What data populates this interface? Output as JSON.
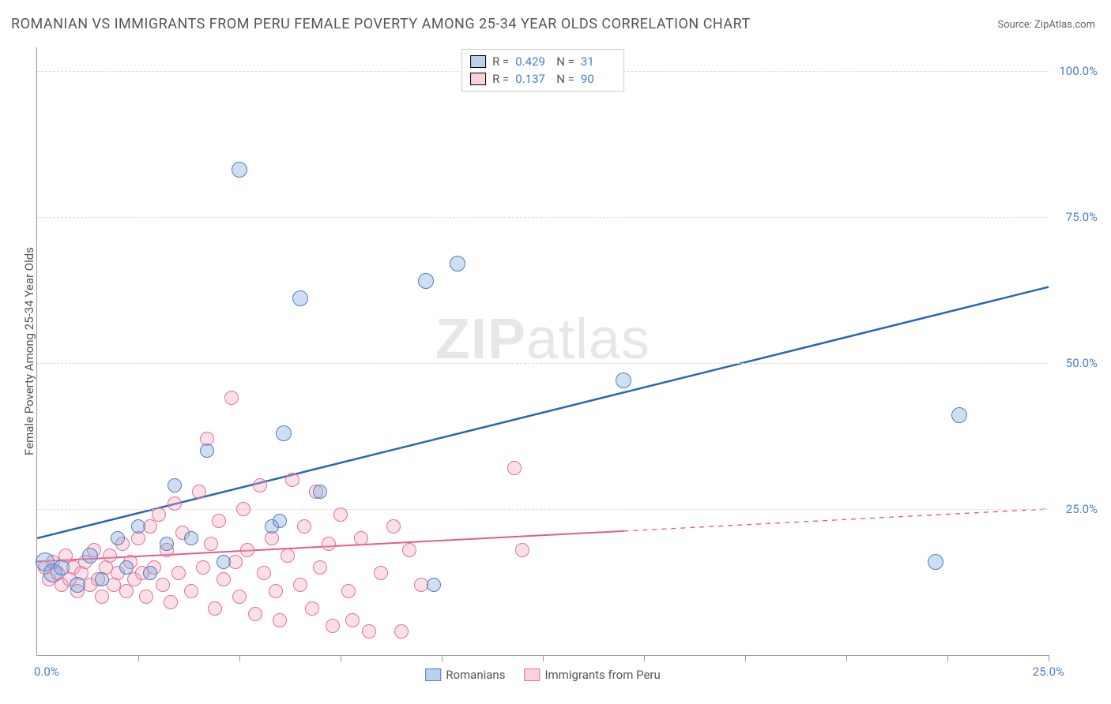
{
  "title": "ROMANIAN VS IMMIGRANTS FROM PERU FEMALE POVERTY AMONG 25-34 YEAR OLDS CORRELATION CHART",
  "source": "Source: ZipAtlas.com",
  "yaxis_label": "Female Poverty Among 25-34 Year Olds",
  "watermark_bold": "ZIP",
  "watermark_light": "atlas",
  "chart": {
    "type": "scatter",
    "xlim": [
      0,
      25
    ],
    "ylim": [
      0,
      104
    ],
    "y_gridlines": [
      25,
      50,
      75,
      100
    ],
    "y_tick_labels": [
      "25.0%",
      "50.0%",
      "75.0%",
      "100.0%"
    ],
    "x_ticks": [
      2.5,
      5,
      7.5,
      10,
      12.5,
      15,
      17.5,
      20,
      22.5,
      25
    ],
    "x_origin_label": "0.0%",
    "x_end_label": "25.0%",
    "background_color": "#ffffff",
    "grid_color": "#dddddd",
    "axis_color": "#999999",
    "label_color": "#555555",
    "tick_color": "#4a7ec9",
    "series": {
      "romanians": {
        "label": "Romanians",
        "R": "0.429",
        "N": "31",
        "color_fill": "rgba(118,164,219,0.35)",
        "color_stroke": "#4a7ec9",
        "marker_radius": 9,
        "trend": {
          "x1": 0,
          "y1": 20,
          "x2": 25,
          "y2": 63,
          "color": "#2b65b6",
          "width": 2.5,
          "solid_until_x": 25
        },
        "points": [
          {
            "x": 0.2,
            "y": 16,
            "r": 12
          },
          {
            "x": 0.4,
            "y": 14,
            "r": 12
          },
          {
            "x": 0.6,
            "y": 15,
            "r": 10
          },
          {
            "x": 1.0,
            "y": 12,
            "r": 10
          },
          {
            "x": 1.3,
            "y": 17,
            "r": 10
          },
          {
            "x": 1.6,
            "y": 13,
            "r": 9
          },
          {
            "x": 2.0,
            "y": 20,
            "r": 9
          },
          {
            "x": 2.2,
            "y": 15,
            "r": 9
          },
          {
            "x": 2.5,
            "y": 22,
            "r": 9
          },
          {
            "x": 2.8,
            "y": 14,
            "r": 9
          },
          {
            "x": 3.2,
            "y": 19,
            "r": 9
          },
          {
            "x": 3.4,
            "y": 29,
            "r": 9
          },
          {
            "x": 3.8,
            "y": 20,
            "r": 9
          },
          {
            "x": 4.2,
            "y": 35,
            "r": 9
          },
          {
            "x": 4.6,
            "y": 16,
            "r": 9
          },
          {
            "x": 5.0,
            "y": 83,
            "r": 10
          },
          {
            "x": 5.8,
            "y": 22,
            "r": 9
          },
          {
            "x": 6.0,
            "y": 23,
            "r": 9
          },
          {
            "x": 6.1,
            "y": 38,
            "r": 10
          },
          {
            "x": 6.5,
            "y": 61,
            "r": 10
          },
          {
            "x": 7.0,
            "y": 28,
            "r": 9
          },
          {
            "x": 9.6,
            "y": 64,
            "r": 10
          },
          {
            "x": 9.8,
            "y": 12,
            "r": 9
          },
          {
            "x": 10.4,
            "y": 67,
            "r": 10
          },
          {
            "x": 14.5,
            "y": 47,
            "r": 10
          },
          {
            "x": 22.2,
            "y": 16,
            "r": 10
          },
          {
            "x": 22.8,
            "y": 41,
            "r": 10
          }
        ]
      },
      "immigrants_peru": {
        "label": "Immigrants from Peru",
        "R": "0.137",
        "N": "90",
        "color_fill": "rgba(244,166,188,0.35)",
        "color_stroke": "#e86f93",
        "marker_radius": 9,
        "trend": {
          "x1": 0,
          "y1": 16,
          "x2": 25,
          "y2": 25,
          "color": "#e75b86",
          "width": 2,
          "solid_until_x": 14.5
        },
        "points": [
          {
            "x": 0.2,
            "y": 15
          },
          {
            "x": 0.3,
            "y": 13
          },
          {
            "x": 0.4,
            "y": 16
          },
          {
            "x": 0.5,
            "y": 14
          },
          {
            "x": 0.6,
            "y": 12
          },
          {
            "x": 0.7,
            "y": 17
          },
          {
            "x": 0.8,
            "y": 13
          },
          {
            "x": 0.9,
            "y": 15
          },
          {
            "x": 1.0,
            "y": 11
          },
          {
            "x": 1.1,
            "y": 14
          },
          {
            "x": 1.2,
            "y": 16
          },
          {
            "x": 1.3,
            "y": 12
          },
          {
            "x": 1.4,
            "y": 18
          },
          {
            "x": 1.5,
            "y": 13
          },
          {
            "x": 1.6,
            "y": 10
          },
          {
            "x": 1.7,
            "y": 15
          },
          {
            "x": 1.8,
            "y": 17
          },
          {
            "x": 1.9,
            "y": 12
          },
          {
            "x": 2.0,
            "y": 14
          },
          {
            "x": 2.1,
            "y": 19
          },
          {
            "x": 2.2,
            "y": 11
          },
          {
            "x": 2.3,
            "y": 16
          },
          {
            "x": 2.4,
            "y": 13
          },
          {
            "x": 2.5,
            "y": 20
          },
          {
            "x": 2.6,
            "y": 14
          },
          {
            "x": 2.7,
            "y": 10
          },
          {
            "x": 2.8,
            "y": 22
          },
          {
            "x": 2.9,
            "y": 15
          },
          {
            "x": 3.0,
            "y": 24
          },
          {
            "x": 3.1,
            "y": 12
          },
          {
            "x": 3.2,
            "y": 18
          },
          {
            "x": 3.3,
            "y": 9
          },
          {
            "x": 3.4,
            "y": 26
          },
          {
            "x": 3.5,
            "y": 14
          },
          {
            "x": 3.6,
            "y": 21
          },
          {
            "x": 3.8,
            "y": 11
          },
          {
            "x": 4.0,
            "y": 28
          },
          {
            "x": 4.1,
            "y": 15
          },
          {
            "x": 4.2,
            "y": 37
          },
          {
            "x": 4.3,
            "y": 19
          },
          {
            "x": 4.4,
            "y": 8
          },
          {
            "x": 4.5,
            "y": 23
          },
          {
            "x": 4.6,
            "y": 13
          },
          {
            "x": 4.8,
            "y": 44
          },
          {
            "x": 4.9,
            "y": 16
          },
          {
            "x": 5.0,
            "y": 10
          },
          {
            "x": 5.1,
            "y": 25
          },
          {
            "x": 5.2,
            "y": 18
          },
          {
            "x": 5.4,
            "y": 7
          },
          {
            "x": 5.5,
            "y": 29
          },
          {
            "x": 5.6,
            "y": 14
          },
          {
            "x": 5.8,
            "y": 20
          },
          {
            "x": 5.9,
            "y": 11
          },
          {
            "x": 6.0,
            "y": 6
          },
          {
            "x": 6.2,
            "y": 17
          },
          {
            "x": 6.3,
            "y": 30
          },
          {
            "x": 6.5,
            "y": 12
          },
          {
            "x": 6.6,
            "y": 22
          },
          {
            "x": 6.8,
            "y": 8
          },
          {
            "x": 6.9,
            "y": 28
          },
          {
            "x": 7.0,
            "y": 15
          },
          {
            "x": 7.2,
            "y": 19
          },
          {
            "x": 7.3,
            "y": 5
          },
          {
            "x": 7.5,
            "y": 24
          },
          {
            "x": 7.7,
            "y": 11
          },
          {
            "x": 7.8,
            "y": 6
          },
          {
            "x": 8.0,
            "y": 20
          },
          {
            "x": 8.2,
            "y": 4
          },
          {
            "x": 8.5,
            "y": 14
          },
          {
            "x": 8.8,
            "y": 22
          },
          {
            "x": 9.0,
            "y": 4
          },
          {
            "x": 9.2,
            "y": 18
          },
          {
            "x": 9.5,
            "y": 12
          },
          {
            "x": 11.8,
            "y": 32
          },
          {
            "x": 12.0,
            "y": 18
          }
        ]
      }
    }
  },
  "legend_bottom": [
    {
      "key": "romanians"
    },
    {
      "key": "immigrants_peru"
    }
  ]
}
